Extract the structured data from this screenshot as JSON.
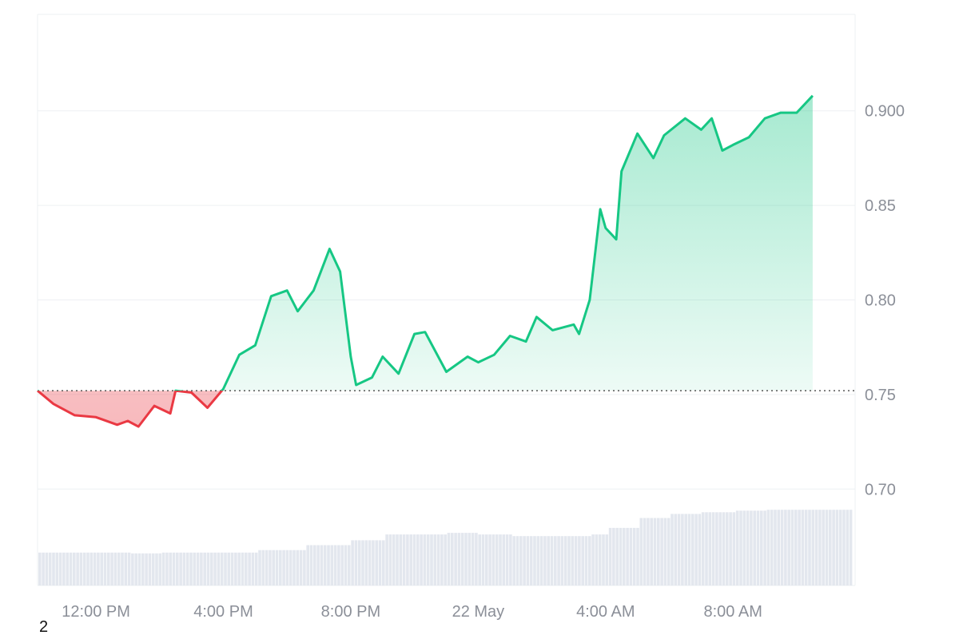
{
  "chart_data": {
    "type": "area",
    "baseline": 0.752,
    "y_axis": {
      "ticks": [
        0.7,
        0.75,
        0.8,
        0.85,
        0.9
      ],
      "tick_labels": [
        "0.70",
        "0.75",
        "0.80",
        "0.85",
        "0.900"
      ],
      "range": [
        0.649,
        0.951
      ],
      "position": "right"
    },
    "x_axis": {
      "tick_labels": [
        "12:00 PM",
        "4:00 PM",
        "8:00 PM",
        "22 May",
        "4:00 AM",
        "8:00 AM"
      ],
      "range": [
        "21 May 10:10 AM",
        "22 May 11:50 AM"
      ]
    },
    "grid": true,
    "colors": {
      "up_line": "#16c784",
      "down_line": "#ea3943",
      "up_fill": "#16c784",
      "down_fill": "#ea3943",
      "volume": "#e3e7ee",
      "grid": "#eef0f3",
      "baseline": "#555555"
    },
    "price_series": [
      {
        "time": "21 May 10:10 AM",
        "value": 0.752
      },
      {
        "time": "21 May 10:40 AM",
        "value": 0.745
      },
      {
        "time": "21 May 11:20 AM",
        "value": 0.739
      },
      {
        "time": "21 May 12:00 PM",
        "value": 0.738
      },
      {
        "time": "21 May 12:40 PM",
        "value": 0.734
      },
      {
        "time": "21 May 1:00 PM",
        "value": 0.736
      },
      {
        "time": "21 May 1:20 PM",
        "value": 0.733
      },
      {
        "time": "21 May 1:50 PM",
        "value": 0.744
      },
      {
        "time": "21 May 2:20 PM",
        "value": 0.74
      },
      {
        "time": "21 May 2:30 PM",
        "value": 0.752
      },
      {
        "time": "21 May 3:00 PM",
        "value": 0.751
      },
      {
        "time": "21 May 3:30 PM",
        "value": 0.743
      },
      {
        "time": "21 May 4:00 PM",
        "value": 0.753
      },
      {
        "time": "21 May 4:30 PM",
        "value": 0.771
      },
      {
        "time": "21 May 5:00 PM",
        "value": 0.776
      },
      {
        "time": "21 May 5:30 PM",
        "value": 0.802
      },
      {
        "time": "21 May 6:00 PM",
        "value": 0.805
      },
      {
        "time": "21 May 6:20 PM",
        "value": 0.794
      },
      {
        "time": "21 May 6:50 PM",
        "value": 0.805
      },
      {
        "time": "21 May 7:20 PM",
        "value": 0.827
      },
      {
        "time": "21 May 7:40 PM",
        "value": 0.815
      },
      {
        "time": "21 May 8:00 PM",
        "value": 0.77
      },
      {
        "time": "21 May 8:10 PM",
        "value": 0.755
      },
      {
        "time": "21 May 8:40 PM",
        "value": 0.759
      },
      {
        "time": "21 May 9:00 PM",
        "value": 0.77
      },
      {
        "time": "21 May 9:30 PM",
        "value": 0.761
      },
      {
        "time": "21 May 10:00 PM",
        "value": 0.782
      },
      {
        "time": "21 May 10:20 PM",
        "value": 0.783
      },
      {
        "time": "21 May 11:00 PM",
        "value": 0.762
      },
      {
        "time": "21 May 11:40 PM",
        "value": 0.77
      },
      {
        "time": "22 May 12:00 AM",
        "value": 0.767
      },
      {
        "time": "22 May 12:30 AM",
        "value": 0.771
      },
      {
        "time": "22 May 1:00 AM",
        "value": 0.781
      },
      {
        "time": "22 May 1:30 AM",
        "value": 0.778
      },
      {
        "time": "22 May 1:50 AM",
        "value": 0.791
      },
      {
        "time": "22 May 2:20 AM",
        "value": 0.784
      },
      {
        "time": "22 May 3:00 AM",
        "value": 0.787
      },
      {
        "time": "22 May 3:10 AM",
        "value": 0.782
      },
      {
        "time": "22 May 3:30 AM",
        "value": 0.8
      },
      {
        "time": "22 May 3:50 AM",
        "value": 0.848
      },
      {
        "time": "22 May 4:00 AM",
        "value": 0.838
      },
      {
        "time": "22 May 4:20 AM",
        "value": 0.832
      },
      {
        "time": "22 May 4:30 AM",
        "value": 0.868
      },
      {
        "time": "22 May 5:00 AM",
        "value": 0.888
      },
      {
        "time": "22 May 5:30 AM",
        "value": 0.875
      },
      {
        "time": "22 May 5:50 AM",
        "value": 0.887
      },
      {
        "time": "22 May 6:30 AM",
        "value": 0.896
      },
      {
        "time": "22 May 7:00 AM",
        "value": 0.89
      },
      {
        "time": "22 May 7:20 AM",
        "value": 0.896
      },
      {
        "time": "22 May 7:40 AM",
        "value": 0.879
      },
      {
        "time": "22 May 8:00 AM",
        "value": 0.882
      },
      {
        "time": "22 May 8:30 AM",
        "value": 0.886
      },
      {
        "time": "22 May 9:00 AM",
        "value": 0.896
      },
      {
        "time": "22 May 9:30 AM",
        "value": 0.899
      },
      {
        "time": "22 May 10:00 AM",
        "value": 0.899
      },
      {
        "time": "22 May 10:30 AM",
        "value": 0.908
      }
    ],
    "volume_relative": [
      {
        "time": "21 May 10:10 AM",
        "value": 0.4
      },
      {
        "time": "21 May 1:00 PM",
        "value": 0.39
      },
      {
        "time": "21 May 2:00 PM",
        "value": 0.4
      },
      {
        "time": "21 May 3:00 PM",
        "value": 0.4
      },
      {
        "time": "21 May 5:00 PM",
        "value": 0.43
      },
      {
        "time": "21 May 6:30 PM",
        "value": 0.49
      },
      {
        "time": "21 May 8:00 PM",
        "value": 0.55
      },
      {
        "time": "21 May 9:00 PM",
        "value": 0.62
      },
      {
        "time": "21 May 10:00 PM",
        "value": 0.62
      },
      {
        "time": "21 May 11:00 PM",
        "value": 0.64
      },
      {
        "time": "22 May 12:00 AM",
        "value": 0.62
      },
      {
        "time": "22 May 1:00 AM",
        "value": 0.6
      },
      {
        "time": "22 May 2:30 AM",
        "value": 0.6
      },
      {
        "time": "22 May 3:30 AM",
        "value": 0.62
      },
      {
        "time": "22 May 4:00 AM",
        "value": 0.7
      },
      {
        "time": "22 May 5:00 AM",
        "value": 0.82
      },
      {
        "time": "22 May 6:00 AM",
        "value": 0.87
      },
      {
        "time": "22 May 7:00 AM",
        "value": 0.89
      },
      {
        "time": "22 May 8:00 AM",
        "value": 0.91
      },
      {
        "time": "22 May 9:00 AM",
        "value": 0.92
      },
      {
        "time": "22 May 10:30 AM",
        "value": 0.92
      }
    ]
  },
  "corner_label": "2"
}
